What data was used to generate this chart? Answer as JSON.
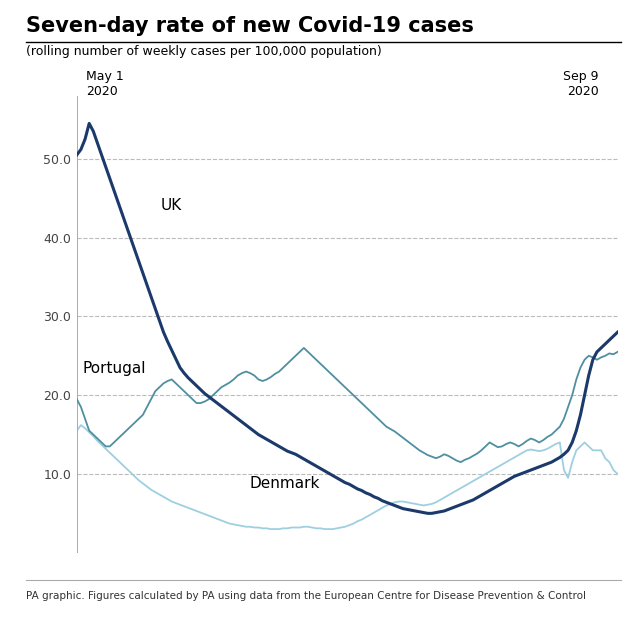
{
  "title": "Seven-day rate of new Covid-19 cases",
  "subtitle": "(rolling number of weekly cases per 100,000 population)",
  "footer": "PA graphic. Figures calculated by PA using data from the European Centre for Disease Prevention & Control",
  "ylim": [
    0,
    58
  ],
  "yticks": [
    10.0,
    20.0,
    30.0,
    40.0,
    50.0
  ],
  "uk_color": "#1b3a6b",
  "portugal_color": "#4e8fa0",
  "denmark_color": "#9ecfe0",
  "label_uk": "UK",
  "label_portugal": "Portugal",
  "label_denmark": "Denmark",
  "uk": [
    50.5,
    51.2,
    52.5,
    54.5,
    53.5,
    52.0,
    50.5,
    49.0,
    47.5,
    46.0,
    44.5,
    43.0,
    41.5,
    40.0,
    38.5,
    37.0,
    35.5,
    34.0,
    32.5,
    31.0,
    29.5,
    28.0,
    26.8,
    25.7,
    24.6,
    23.5,
    22.8,
    22.2,
    21.7,
    21.2,
    20.7,
    20.2,
    19.8,
    19.4,
    19.0,
    18.6,
    18.2,
    17.8,
    17.4,
    17.0,
    16.6,
    16.2,
    15.8,
    15.4,
    15.0,
    14.7,
    14.4,
    14.1,
    13.8,
    13.5,
    13.2,
    12.9,
    12.7,
    12.5,
    12.2,
    11.9,
    11.6,
    11.3,
    11.0,
    10.7,
    10.4,
    10.1,
    9.8,
    9.5,
    9.2,
    8.9,
    8.7,
    8.4,
    8.1,
    7.9,
    7.6,
    7.4,
    7.1,
    6.9,
    6.6,
    6.4,
    6.2,
    6.0,
    5.8,
    5.6,
    5.5,
    5.4,
    5.3,
    5.2,
    5.1,
    5.0,
    5.0,
    5.1,
    5.2,
    5.3,
    5.5,
    5.7,
    5.9,
    6.1,
    6.3,
    6.5,
    6.7,
    7.0,
    7.3,
    7.6,
    7.9,
    8.2,
    8.5,
    8.8,
    9.1,
    9.4,
    9.7,
    9.9,
    10.1,
    10.3,
    10.5,
    10.7,
    10.9,
    11.1,
    11.3,
    11.5,
    11.8,
    12.1,
    12.5,
    13.0,
    14.0,
    15.5,
    17.5,
    20.0,
    22.5,
    24.5,
    25.5,
    26.0,
    26.5,
    27.0,
    27.5,
    28.0
  ],
  "portugal": [
    19.5,
    18.5,
    17.0,
    15.5,
    15.0,
    14.5,
    14.0,
    13.5,
    13.5,
    14.0,
    14.5,
    15.0,
    15.5,
    16.0,
    16.5,
    17.0,
    17.5,
    18.5,
    19.5,
    20.5,
    21.0,
    21.5,
    21.8,
    22.0,
    21.5,
    21.0,
    20.5,
    20.0,
    19.5,
    19.0,
    19.0,
    19.2,
    19.5,
    20.0,
    20.5,
    21.0,
    21.3,
    21.6,
    22.0,
    22.5,
    22.8,
    23.0,
    22.8,
    22.5,
    22.0,
    21.8,
    22.0,
    22.3,
    22.7,
    23.0,
    23.5,
    24.0,
    24.5,
    25.0,
    25.5,
    26.0,
    25.5,
    25.0,
    24.5,
    24.0,
    23.5,
    23.0,
    22.5,
    22.0,
    21.5,
    21.0,
    20.5,
    20.0,
    19.5,
    19.0,
    18.5,
    18.0,
    17.5,
    17.0,
    16.5,
    16.0,
    15.7,
    15.4,
    15.0,
    14.6,
    14.2,
    13.8,
    13.4,
    13.0,
    12.7,
    12.4,
    12.2,
    12.0,
    12.2,
    12.5,
    12.3,
    12.0,
    11.7,
    11.5,
    11.8,
    12.0,
    12.3,
    12.6,
    13.0,
    13.5,
    14.0,
    13.7,
    13.4,
    13.5,
    13.8,
    14.0,
    13.8,
    13.5,
    13.8,
    14.2,
    14.5,
    14.3,
    14.0,
    14.3,
    14.7,
    15.0,
    15.5,
    16.0,
    17.0,
    18.5,
    20.0,
    22.0,
    23.5,
    24.5,
    25.0,
    24.8,
    24.5,
    24.8,
    25.0,
    25.3,
    25.2,
    25.5
  ],
  "denmark": [
    15.5,
    16.2,
    15.8,
    15.3,
    14.8,
    14.2,
    13.7,
    13.2,
    12.7,
    12.2,
    11.7,
    11.2,
    10.7,
    10.2,
    9.7,
    9.2,
    8.8,
    8.4,
    8.0,
    7.7,
    7.4,
    7.1,
    6.8,
    6.5,
    6.3,
    6.1,
    5.9,
    5.7,
    5.5,
    5.3,
    5.1,
    4.9,
    4.7,
    4.5,
    4.3,
    4.1,
    3.9,
    3.7,
    3.6,
    3.5,
    3.4,
    3.3,
    3.3,
    3.2,
    3.2,
    3.1,
    3.1,
    3.0,
    3.0,
    3.0,
    3.1,
    3.1,
    3.2,
    3.2,
    3.2,
    3.3,
    3.3,
    3.2,
    3.1,
    3.1,
    3.0,
    3.0,
    3.0,
    3.1,
    3.2,
    3.3,
    3.5,
    3.7,
    4.0,
    4.2,
    4.5,
    4.8,
    5.1,
    5.4,
    5.7,
    6.0,
    6.2,
    6.4,
    6.5,
    6.5,
    6.4,
    6.3,
    6.2,
    6.1,
    6.0,
    6.1,
    6.2,
    6.4,
    6.7,
    7.0,
    7.3,
    7.6,
    7.9,
    8.2,
    8.5,
    8.8,
    9.1,
    9.4,
    9.7,
    10.0,
    10.3,
    10.6,
    10.9,
    11.2,
    11.5,
    11.8,
    12.1,
    12.4,
    12.7,
    13.0,
    13.1,
    13.0,
    12.9,
    13.0,
    13.2,
    13.5,
    13.8,
    14.0,
    10.5,
    9.5,
    11.5,
    13.0,
    13.5,
    14.0,
    13.5,
    13.0,
    13.0,
    13.0,
    12.0,
    11.5,
    10.5,
    10.0
  ]
}
